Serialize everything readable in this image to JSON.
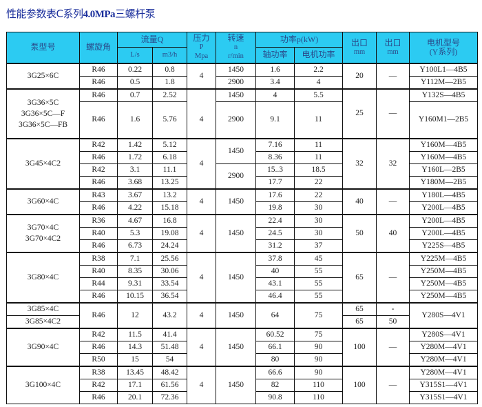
{
  "title_prefix": "性能参数表C系列",
  "title_bold": "4.0MPa",
  "title_suffix": "三螺杆泵",
  "header": {
    "pump_model": "泵型号",
    "helix_angle": "螺旋角",
    "flow": "流量Q",
    "flow_ls": "L/s",
    "flow_m3h": "m3/h",
    "pressure": "压力",
    "pressure_p": "P",
    "pressure_unit": "Mpa",
    "speed": "转速",
    "speed_n": "n",
    "speed_unit": "r/min",
    "power": "功率p(kW)",
    "shaft_power": "轴功率",
    "motor_power": "电机功率",
    "outlet1": "出口",
    "outlet1_unit": "mm",
    "outlet2": "出口",
    "outlet2_unit": "mm",
    "motor_model": "电机型号",
    "motor_series": "(Y系列)"
  },
  "rows": [
    {
      "g": 1,
      "cells": [
        {
          "t": "3G25×6C",
          "rs": 2
        },
        {
          "t": "R46"
        },
        {
          "t": "0.22"
        },
        {
          "t": "0.8"
        },
        {
          "t": "4",
          "rs": 2
        },
        {
          "t": "1450"
        },
        {
          "t": "1.6"
        },
        {
          "t": "2.2"
        },
        {
          "t": "20",
          "rs": 2
        },
        {
          "t": "—",
          "rs": 2
        },
        {
          "t": "Y100L1—4B5"
        }
      ]
    },
    {
      "cells": [
        {
          "t": "R46"
        },
        {
          "t": "0.5"
        },
        {
          "t": "1.8"
        },
        {
          "t": "2900"
        },
        {
          "t": "3.4"
        },
        {
          "t": "4"
        },
        {
          "t": "Y112M—2B5"
        }
      ]
    },
    {
      "g": 1,
      "cells": [
        {
          "t": "3G36×5C\n3G36×5C—F\n3G36×5C—FB",
          "rs": 2
        },
        {
          "t": "R46"
        },
        {
          "t": "0.7"
        },
        {
          "t": "2.52"
        },
        {
          "t": "4",
          "rs": 2,
          "pb": 1
        },
        {
          "t": "1450"
        },
        {
          "t": "4"
        },
        {
          "t": "5.5"
        },
        {
          "t": "25",
          "rs": 2
        },
        {
          "t": "—",
          "rs": 2
        },
        {
          "t": "Y132S—4B5"
        }
      ]
    },
    {
      "tall": 1,
      "cells": [
        {
          "t": "R46"
        },
        {
          "t": "1.6"
        },
        {
          "t": "5.76"
        },
        {
          "t": "2900"
        },
        {
          "t": "9.1"
        },
        {
          "t": "11"
        },
        {
          "t": "Y160M1—2B5"
        }
      ]
    },
    {
      "g": 1,
      "cells": [
        {
          "t": "3G45×4C2",
          "rs": 4
        },
        {
          "t": "R42"
        },
        {
          "t": "1.42"
        },
        {
          "t": "5.12"
        },
        {
          "t": "4",
          "rs": 4
        },
        {
          "t": "1450",
          "rs": 2
        },
        {
          "t": "7.16"
        },
        {
          "t": "11"
        },
        {
          "t": "32",
          "rs": 4
        },
        {
          "t": "32",
          "rs": 4
        },
        {
          "t": "Y160M—4B5"
        }
      ]
    },
    {
      "cells": [
        {
          "t": "R46"
        },
        {
          "t": "1.72"
        },
        {
          "t": "6.18"
        },
        {
          "t": "8.36"
        },
        {
          "t": "11"
        },
        {
          "t": "Y160M—4B5"
        }
      ]
    },
    {
      "cells": [
        {
          "t": "R42"
        },
        {
          "t": "3.1"
        },
        {
          "t": "11.1"
        },
        {
          "t": "2900",
          "rs": 2
        },
        {
          "t": "15..3"
        },
        {
          "t": "18.5"
        },
        {
          "t": "Y160L—2B5"
        }
      ]
    },
    {
      "cells": [
        {
          "t": "R46"
        },
        {
          "t": "3.68"
        },
        {
          "t": "13.25"
        },
        {
          "t": "17.7"
        },
        {
          "t": "22"
        },
        {
          "t": "Y180M—2B5"
        }
      ]
    },
    {
      "g": 1,
      "cells": [
        {
          "t": "3G60×4C",
          "rs": 2
        },
        {
          "t": "R43"
        },
        {
          "t": "3.67"
        },
        {
          "t": "13.2"
        },
        {
          "t": "4",
          "rs": 2
        },
        {
          "t": "1450",
          "rs": 2
        },
        {
          "t": "17.6"
        },
        {
          "t": "22"
        },
        {
          "t": "40",
          "rs": 2
        },
        {
          "t": "—",
          "rs": 2
        },
        {
          "t": "Y180L—4B5"
        }
      ]
    },
    {
      "cells": [
        {
          "t": "R46"
        },
        {
          "t": "4.22"
        },
        {
          "t": "15.18"
        },
        {
          "t": "19.8"
        },
        {
          "t": "30"
        },
        {
          "t": "Y200L—4B5"
        }
      ]
    },
    {
      "g": 1,
      "cells": [
        {
          "t": "3G70×4C\n3G70×4C2",
          "rs": 3
        },
        {
          "t": "R36"
        },
        {
          "t": "4.67"
        },
        {
          "t": "16.8"
        },
        {
          "t": "4",
          "rs": 3
        },
        {
          "t": "1450",
          "rs": 3
        },
        {
          "t": "22.4"
        },
        {
          "t": "30"
        },
        {
          "t": "50",
          "rs": 3
        },
        {
          "t": "40",
          "rs": 3
        },
        {
          "t": "Y200L—4B5"
        }
      ]
    },
    {
      "cells": [
        {
          "t": "R40"
        },
        {
          "t": "5.3"
        },
        {
          "t": "19.08"
        },
        {
          "t": "24.5"
        },
        {
          "t": "30"
        },
        {
          "t": "Y200L—4B5"
        }
      ]
    },
    {
      "cells": [
        {
          "t": "R46"
        },
        {
          "t": "6.73"
        },
        {
          "t": "24.24"
        },
        {
          "t": "31.2"
        },
        {
          "t": "37"
        },
        {
          "t": "Y225S—4B5"
        }
      ]
    },
    {
      "g": 1,
      "cells": [
        {
          "t": "3G80×4C",
          "rs": 4
        },
        {
          "t": "R38"
        },
        {
          "t": "7.1"
        },
        {
          "t": "25.56"
        },
        {
          "t": "4",
          "rs": 4
        },
        {
          "t": "1450",
          "rs": 4
        },
        {
          "t": "37.8"
        },
        {
          "t": "45"
        },
        {
          "t": "65",
          "rs": 4
        },
        {
          "t": "—",
          "rs": 4
        },
        {
          "t": "Y225M—4B5"
        }
      ]
    },
    {
      "cells": [
        {
          "t": "R40"
        },
        {
          "t": "8.35"
        },
        {
          "t": "30.06"
        },
        {
          "t": "40"
        },
        {
          "t": "55"
        },
        {
          "t": "Y250M—4B5"
        }
      ]
    },
    {
      "cells": [
        {
          "t": "R44"
        },
        {
          "t": "9.31"
        },
        {
          "t": "33.54"
        },
        {
          "t": "43.1"
        },
        {
          "t": "55"
        },
        {
          "t": "Y250M—4B5"
        }
      ]
    },
    {
      "cells": [
        {
          "t": "R46"
        },
        {
          "t": "10.15"
        },
        {
          "t": "36.54"
        },
        {
          "t": "46.4"
        },
        {
          "t": "55"
        },
        {
          "t": "Y250M—4B5"
        }
      ]
    },
    {
      "g": 1,
      "cells": [
        {
          "t": "3G85×4C"
        },
        {
          "t": "R46",
          "rs": 2
        },
        {
          "t": "12",
          "rs": 2
        },
        {
          "t": "43.2",
          "rs": 2
        },
        {
          "t": "4",
          "rs": 2
        },
        {
          "t": "1450",
          "rs": 2
        },
        {
          "t": "64",
          "rs": 2
        },
        {
          "t": "75",
          "rs": 2
        },
        {
          "t": "65"
        },
        {
          "t": "-"
        },
        {
          "t": "Y280S—4V1",
          "rs": 2
        }
      ]
    },
    {
      "cells": [
        {
          "t": "3G85×4C2"
        },
        {
          "t": "65"
        },
        {
          "t": "50"
        }
      ]
    },
    {
      "g": 1,
      "cells": [
        {
          "t": "3G90×4C",
          "rs": 3
        },
        {
          "t": "R42"
        },
        {
          "t": "11.5"
        },
        {
          "t": "41.4"
        },
        {
          "t": "4",
          "rs": 3
        },
        {
          "t": "1450",
          "rs": 3
        },
        {
          "t": "60.52"
        },
        {
          "t": "75"
        },
        {
          "t": "100",
          "rs": 3
        },
        {
          "t": "—",
          "rs": 3
        },
        {
          "t": "Y280S—4V1"
        }
      ]
    },
    {
      "cells": [
        {
          "t": "R46"
        },
        {
          "t": "14.3"
        },
        {
          "t": "51.48"
        },
        {
          "t": "66.1"
        },
        {
          "t": "90"
        },
        {
          "t": "Y280M—4V1"
        }
      ]
    },
    {
      "cells": [
        {
          "t": "R50"
        },
        {
          "t": "15"
        },
        {
          "t": "54"
        },
        {
          "t": "80"
        },
        {
          "t": "90"
        },
        {
          "t": "Y280M—4V1"
        }
      ]
    },
    {
      "g": 1,
      "cells": [
        {
          "t": "3G100×4C",
          "rs": 3
        },
        {
          "t": "R38"
        },
        {
          "t": "13.45"
        },
        {
          "t": "48.42"
        },
        {
          "t": "4",
          "rs": 3
        },
        {
          "t": "1450",
          "rs": 3
        },
        {
          "t": "66.6"
        },
        {
          "t": "90"
        },
        {
          "t": "100",
          "rs": 3
        },
        {
          "t": "—",
          "rs": 3
        },
        {
          "t": "Y280M—4V1"
        }
      ]
    },
    {
      "cells": [
        {
          "t": "R42"
        },
        {
          "t": "17.1"
        },
        {
          "t": "61.56"
        },
        {
          "t": "82"
        },
        {
          "t": "110"
        },
        {
          "t": "Y315S1—4V1"
        }
      ]
    },
    {
      "cells": [
        {
          "t": "R46"
        },
        {
          "t": "20.1"
        },
        {
          "t": "72.36"
        },
        {
          "t": "90.8"
        },
        {
          "t": "110"
        },
        {
          "t": "Y315S1—4V1"
        }
      ]
    }
  ],
  "colors": {
    "header_bg": "#2ccbf2",
    "header_text": "#2a4a8a",
    "title": "#1b2f9c"
  }
}
